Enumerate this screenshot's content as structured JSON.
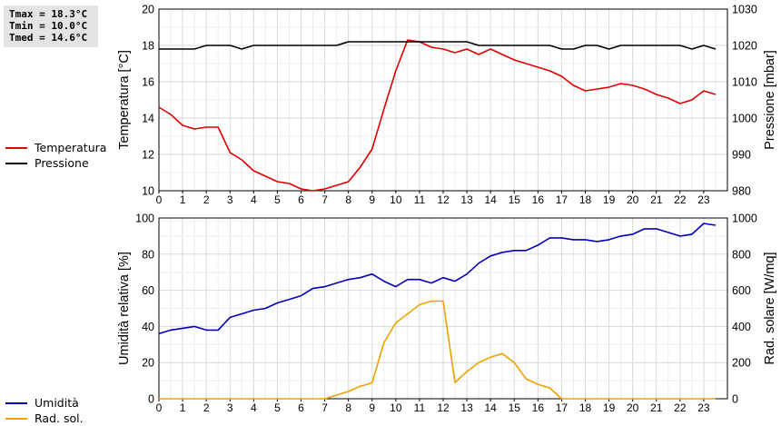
{
  "stats": {
    "tmax": "Tmax = 18.3°C",
    "tmin": "Tmin = 10.0°C",
    "tmed": "Tmed = 14.6°C"
  },
  "legend_top": {
    "items": [
      {
        "label": "Temperatura",
        "color": "#dd0000"
      },
      {
        "label": "Pressione",
        "color": "#000000"
      }
    ]
  },
  "legend_bottom": {
    "items": [
      {
        "label": "Umidità",
        "color": "#0000bb"
      },
      {
        "label": "Rad. sol.",
        "color": "#f0a000"
      }
    ]
  },
  "chart_data": [
    {
      "type": "line",
      "ylabel": "Temperatura [°C]",
      "y2label": "Pressione [mbar]",
      "xlim": [
        0,
        24
      ],
      "ylim": [
        10,
        20
      ],
      "y2lim": [
        980,
        1030
      ],
      "x_ticks": [
        "0",
        "1",
        "2",
        "3",
        "4",
        "5",
        "6",
        "7",
        "8",
        "9",
        "10",
        "11",
        "12",
        "13",
        "14",
        "15",
        "16",
        "17",
        "18",
        "19",
        "20",
        "21",
        "22",
        "23"
      ],
      "y_ticks": [
        "10",
        "12",
        "14",
        "16",
        "18",
        "20"
      ],
      "y2_ticks": [
        "980",
        "990",
        "1000",
        "1010",
        "1020",
        "1030"
      ],
      "grid": true,
      "series": [
        {
          "name": "Temperatura",
          "axis": "left",
          "color": "#dd0000",
          "x": [
            0,
            0.5,
            1,
            1.5,
            2,
            2.5,
            3,
            3.5,
            4,
            4.5,
            5,
            5.5,
            6,
            6.5,
            7,
            7.5,
            8,
            8.5,
            9,
            9.5,
            10,
            10.5,
            11,
            11.5,
            12,
            12.5,
            13,
            13.5,
            14,
            14.5,
            15,
            15.5,
            16,
            16.5,
            17,
            17.5,
            18,
            18.5,
            19,
            19.5,
            20,
            20.5,
            21,
            21.5,
            22,
            22.5,
            23,
            23.5
          ],
          "y": [
            14.6,
            14.2,
            13.6,
            13.4,
            13.5,
            13.5,
            12.1,
            11.7,
            11.1,
            10.8,
            10.5,
            10.4,
            10.1,
            10.0,
            10.1,
            10.3,
            10.5,
            11.3,
            12.3,
            14.5,
            16.6,
            18.3,
            18.2,
            17.9,
            17.8,
            17.6,
            17.8,
            17.5,
            17.8,
            17.5,
            17.2,
            17.0,
            16.8,
            16.6,
            16.3,
            15.8,
            15.5,
            15.6,
            15.7,
            15.9,
            15.8,
            15.6,
            15.3,
            15.1,
            14.8,
            15.0,
            15.5,
            15.3
          ]
        },
        {
          "name": "Pressione",
          "axis": "right",
          "color": "#000000",
          "x": [
            0,
            0.5,
            1,
            1.5,
            2,
            2.5,
            3,
            3.5,
            4,
            4.5,
            5,
            5.5,
            6,
            6.5,
            7,
            7.5,
            8,
            8.5,
            9,
            9.5,
            10,
            10.5,
            11,
            11.5,
            12,
            12.5,
            13,
            13.5,
            14,
            14.5,
            15,
            15.5,
            16,
            16.5,
            17,
            17.5,
            18,
            18.5,
            19,
            19.5,
            20,
            20.5,
            21,
            21.5,
            22,
            22.5,
            23,
            23.5
          ],
          "y": [
            1019,
            1019,
            1019,
            1019,
            1020,
            1020,
            1020,
            1019,
            1020,
            1020,
            1020,
            1020,
            1020,
            1020,
            1020,
            1020,
            1021,
            1021,
            1021,
            1021,
            1021,
            1021,
            1021,
            1021,
            1021,
            1021,
            1021,
            1020,
            1020,
            1020,
            1020,
            1020,
            1020,
            1020,
            1019,
            1019,
            1020,
            1020,
            1019,
            1020,
            1020,
            1020,
            1020,
            1020,
            1020,
            1019,
            1020,
            1019
          ]
        }
      ]
    },
    {
      "type": "line",
      "ylabel": "Umidità relativa [%]",
      "y2label": "Rad. solare [W/mq]",
      "xlim": [
        0,
        24
      ],
      "ylim": [
        0,
        100
      ],
      "y2lim": [
        0,
        1000
      ],
      "x_ticks": [
        "0",
        "1",
        "2",
        "3",
        "4",
        "5",
        "6",
        "7",
        "8",
        "9",
        "10",
        "11",
        "12",
        "13",
        "14",
        "15",
        "16",
        "17",
        "18",
        "19",
        "20",
        "21",
        "22",
        "23"
      ],
      "y_ticks": [
        "0",
        "20",
        "40",
        "60",
        "80",
        "100"
      ],
      "y2_ticks": [
        "0",
        "200",
        "400",
        "600",
        "800",
        "1000"
      ],
      "grid": true,
      "series": [
        {
          "name": "Umidità",
          "axis": "left",
          "color": "#0000bb",
          "x": [
            0,
            0.5,
            1,
            1.5,
            2,
            2.5,
            3,
            3.5,
            4,
            4.5,
            5,
            5.5,
            6,
            6.5,
            7,
            7.5,
            8,
            8.5,
            9,
            9.5,
            10,
            10.5,
            11,
            11.5,
            12,
            12.5,
            13,
            13.5,
            14,
            14.5,
            15,
            15.5,
            16,
            16.5,
            17,
            17.5,
            18,
            18.5,
            19,
            19.5,
            20,
            20.5,
            21,
            21.5,
            22,
            22.5,
            23,
            23.5
          ],
          "y": [
            36,
            38,
            39,
            40,
            38,
            38,
            45,
            47,
            49,
            50,
            53,
            55,
            57,
            61,
            62,
            64,
            66,
            67,
            69,
            65,
            62,
            66,
            66,
            64,
            67,
            65,
            69,
            75,
            79,
            81,
            82,
            82,
            85,
            89,
            89,
            88,
            88,
            87,
            88,
            90,
            91,
            94,
            94,
            92,
            90,
            91,
            97,
            96
          ]
        },
        {
          "name": "Rad. sol.",
          "axis": "right",
          "color": "#f0a000",
          "x": [
            0,
            0.5,
            1,
            1.5,
            2,
            2.5,
            3,
            3.5,
            4,
            4.5,
            5,
            5.5,
            6,
            6.5,
            7,
            7.5,
            8,
            8.5,
            8.8,
            9,
            9.5,
            10,
            10.5,
            11,
            11.5,
            12,
            12.5,
            13,
            13.5,
            14,
            14.5,
            15,
            15.5,
            16,
            16.5,
            17,
            17.5,
            18,
            18.5,
            19,
            19.5,
            20,
            20.5,
            21,
            21.5,
            22,
            22.5,
            23,
            23.5
          ],
          "y": [
            0,
            0,
            0,
            0,
            0,
            0,
            0,
            0,
            0,
            0,
            0,
            0,
            0,
            0,
            0,
            20,
            40,
            70,
            80,
            90,
            310,
            420,
            470,
            520,
            540,
            540,
            90,
            150,
            200,
            230,
            250,
            200,
            110,
            80,
            60,
            0,
            0,
            0,
            0,
            0,
            0,
            0,
            0,
            0,
            0,
            0,
            0,
            0,
            0
          ]
        }
      ]
    }
  ]
}
